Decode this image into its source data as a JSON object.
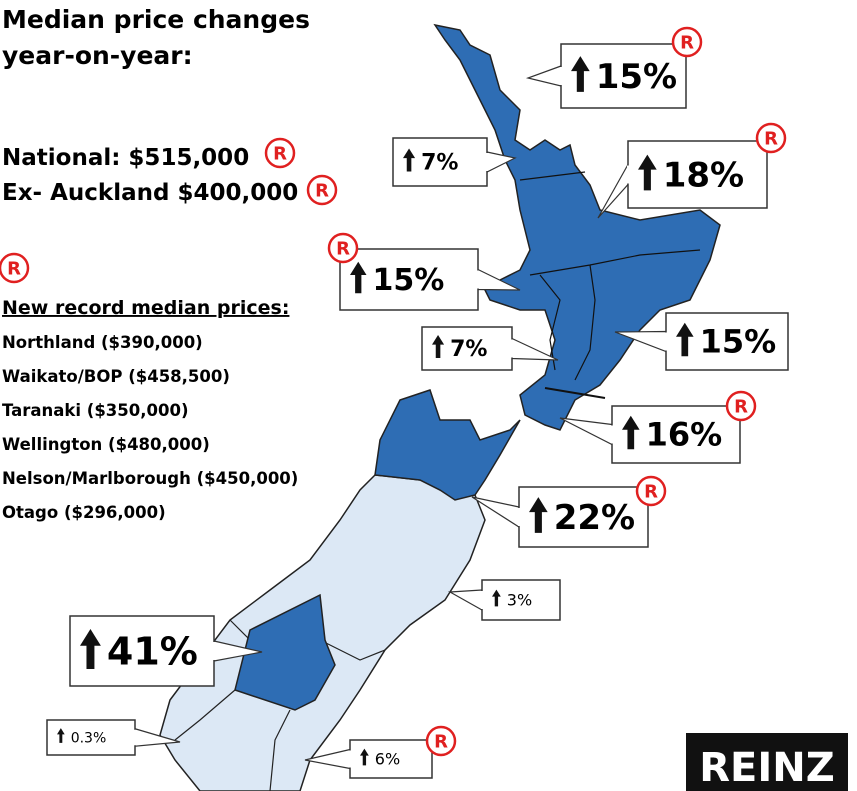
{
  "title_lines": [
    "Median price changes",
    "year-on-year:"
  ],
  "national": "National: $515,000",
  "ex_auckland": "Ex- Auckland $400,000",
  "record_mark": "R",
  "records_heading": "New record median prices:",
  "records": [
    "Northland ($390,000)",
    "Waikato/BOP ($458,500)",
    "Taranaki ($350,000)",
    "Wellington ($480,000)",
    "Nelson/Marlborough ($450,000)",
    "Otago ($296,000)"
  ],
  "callouts": [
    {
      "change": "15%",
      "record": true
    },
    {
      "change": "7%",
      "record": false
    },
    {
      "change": "18%",
      "record": true
    },
    {
      "change": "15%",
      "record": true
    },
    {
      "change": "7%",
      "record": false
    },
    {
      "change": "15%",
      "record": false
    },
    {
      "change": "16%",
      "record": true
    },
    {
      "change": "22%",
      "record": true
    },
    {
      "change": "3%",
      "record": false
    },
    {
      "change": "41%",
      "record": false
    },
    {
      "change": "0.3%",
      "record": false
    },
    {
      "change": "6%",
      "record": true
    }
  ],
  "logo": "REINZ"
}
